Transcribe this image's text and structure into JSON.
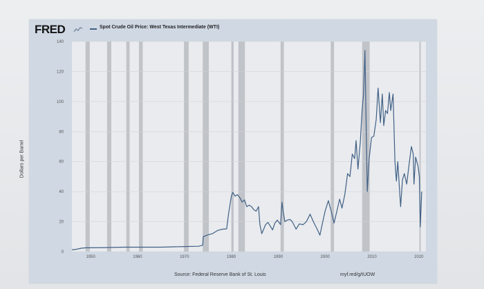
{
  "chart_data": {
    "type": "line",
    "brand": "FRED",
    "title": "",
    "series": [
      {
        "name": "Spot Crude Oil Price: West Texas Intermediate (WTI)",
        "color": "#3f5f85",
        "points": [
          [
            1946.0,
            1.2
          ],
          [
            1947.0,
            1.6
          ],
          [
            1948.0,
            2.3
          ],
          [
            1949.0,
            2.6
          ],
          [
            1950.0,
            2.6
          ],
          [
            1953.0,
            2.7
          ],
          [
            1957.0,
            3.0
          ],
          [
            1960.0,
            3.0
          ],
          [
            1965.0,
            3.0
          ],
          [
            1970.0,
            3.4
          ],
          [
            1973.0,
            3.6
          ],
          [
            1973.9,
            4.3
          ],
          [
            1974.0,
            10.0
          ],
          [
            1975.0,
            11.2
          ],
          [
            1976.0,
            12.0
          ],
          [
            1977.0,
            14.0
          ],
          [
            1978.0,
            14.9
          ],
          [
            1979.0,
            15.2
          ],
          [
            1979.4,
            25.0
          ],
          [
            1980.0,
            37.0
          ],
          [
            1980.3,
            39.5
          ],
          [
            1980.8,
            37.0
          ],
          [
            1981.3,
            38.0
          ],
          [
            1981.8,
            36.0
          ],
          [
            1982.3,
            33.0
          ],
          [
            1982.8,
            34.5
          ],
          [
            1983.3,
            30.0
          ],
          [
            1983.8,
            31.0
          ],
          [
            1984.3,
            30.0
          ],
          [
            1984.8,
            28.0
          ],
          [
            1985.3,
            27.0
          ],
          [
            1985.8,
            30.0
          ],
          [
            1986.1,
            18.0
          ],
          [
            1986.5,
            12.0
          ],
          [
            1986.9,
            15.0
          ],
          [
            1987.3,
            18.0
          ],
          [
            1987.8,
            19.5
          ],
          [
            1988.3,
            17.0
          ],
          [
            1988.8,
            14.5
          ],
          [
            1989.3,
            19.0
          ],
          [
            1989.8,
            21.0
          ],
          [
            1990.5,
            18.0
          ],
          [
            1990.8,
            33.0
          ],
          [
            1991.0,
            28.0
          ],
          [
            1991.4,
            20.0
          ],
          [
            1991.9,
            21.0
          ],
          [
            1992.5,
            21.5
          ],
          [
            1993.0,
            20.0
          ],
          [
            1993.8,
            15.0
          ],
          [
            1994.5,
            18.5
          ],
          [
            1995.3,
            18.0
          ],
          [
            1996.0,
            20.0
          ],
          [
            1996.8,
            25.0
          ],
          [
            1997.5,
            20.0
          ],
          [
            1998.3,
            15.0
          ],
          [
            1998.9,
            11.0
          ],
          [
            1999.5,
            20.0
          ],
          [
            2000.0,
            27.0
          ],
          [
            2000.7,
            34.0
          ],
          [
            2001.3,
            27.0
          ],
          [
            2001.9,
            19.0
          ],
          [
            2002.5,
            27.0
          ],
          [
            2003.1,
            35.0
          ],
          [
            2003.6,
            29.0
          ],
          [
            2004.2,
            38.0
          ],
          [
            2004.8,
            52.0
          ],
          [
            2005.3,
            50.0
          ],
          [
            2005.8,
            65.0
          ],
          [
            2006.3,
            62.0
          ],
          [
            2006.6,
            74.0
          ],
          [
            2007.0,
            55.0
          ],
          [
            2007.5,
            73.0
          ],
          [
            2007.9,
            95.0
          ],
          [
            2008.2,
            105.0
          ],
          [
            2008.5,
            134.0
          ],
          [
            2008.8,
            75.0
          ],
          [
            2009.0,
            40.0
          ],
          [
            2009.4,
            62.0
          ],
          [
            2009.9,
            76.0
          ],
          [
            2010.4,
            77.0
          ],
          [
            2010.9,
            88.0
          ],
          [
            2011.3,
            109.0
          ],
          [
            2011.8,
            86.0
          ],
          [
            2012.2,
            105.0
          ],
          [
            2012.5,
            84.0
          ],
          [
            2012.9,
            94.0
          ],
          [
            2013.3,
            92.0
          ],
          [
            2013.7,
            106.0
          ],
          [
            2014.0,
            94.0
          ],
          [
            2014.5,
            105.0
          ],
          [
            2014.9,
            60.0
          ],
          [
            2015.2,
            47.0
          ],
          [
            2015.5,
            60.0
          ],
          [
            2015.9,
            40.0
          ],
          [
            2016.1,
            30.0
          ],
          [
            2016.5,
            48.0
          ],
          [
            2016.9,
            52.0
          ],
          [
            2017.4,
            45.0
          ],
          [
            2017.9,
            58.0
          ],
          [
            2018.4,
            70.0
          ],
          [
            2018.8,
            65.0
          ],
          [
            2018.95,
            45.0
          ],
          [
            2019.3,
            63.0
          ],
          [
            2019.8,
            57.0
          ],
          [
            2020.1,
            50.0
          ],
          [
            2020.3,
            16.5
          ],
          [
            2020.6,
            40.0
          ]
        ]
      }
    ],
    "recessions": [
      [
        1948.9,
        1949.8
      ],
      [
        1953.5,
        1954.4
      ],
      [
        1957.6,
        1958.3
      ],
      [
        1960.3,
        1961.1
      ],
      [
        1969.9,
        1970.9
      ],
      [
        1973.9,
        1975.2
      ],
      [
        1980.0,
        1980.5
      ],
      [
        1981.5,
        1982.9
      ],
      [
        1990.5,
        1991.2
      ],
      [
        2001.2,
        2001.9
      ],
      [
        2007.9,
        2009.5
      ],
      [
        2020.1,
        2020.4
      ]
    ],
    "xlim": [
      1946,
      2021.5
    ],
    "ylim": [
      0,
      140
    ],
    "xticks": [
      1950,
      1960,
      1970,
      1980,
      1990,
      2000,
      2010,
      2020
    ],
    "yticks": [
      0,
      20,
      40,
      60,
      80,
      100,
      120,
      140
    ],
    "ylabel": "Dollars per Barrel",
    "source": "Source: Federal Reserve Bank of St. Louis",
    "url": "myf.red/g/tUOW",
    "colors": {
      "plot_background": "#e9ebee",
      "recession_band": "#b9bcc1",
      "grid": "#d2d5da"
    },
    "grid": true,
    "legend_placement": "top-left"
  }
}
